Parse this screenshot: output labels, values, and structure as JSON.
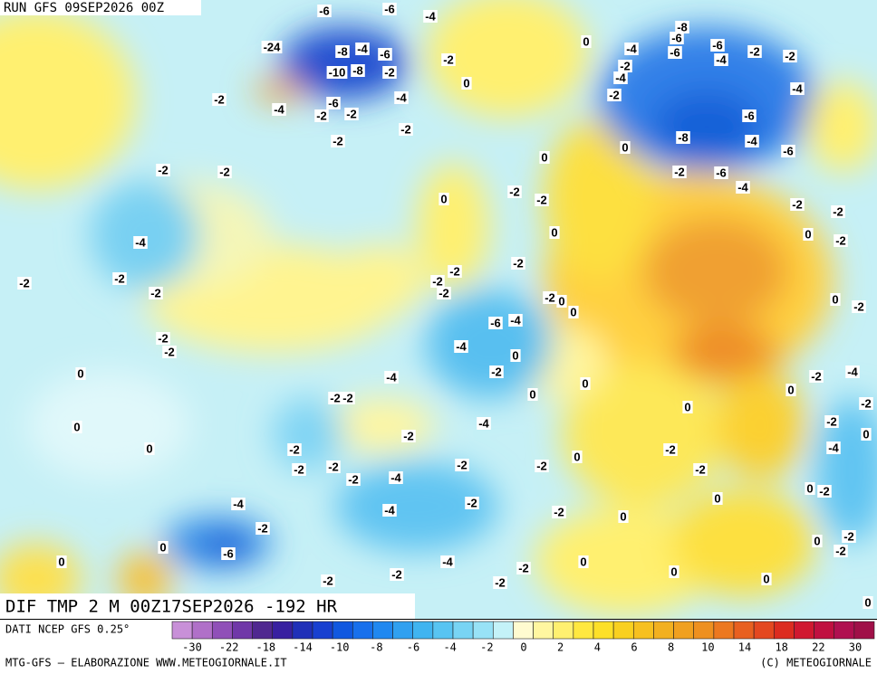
{
  "header": {
    "run": "RUN GFS 09SEP2026 00Z"
  },
  "map": {
    "title": "DIF TMP 2 M 00Z17SEP2026 -192 HR",
    "contour_labels": [
      -6,
      -6,
      -4,
      -24,
      -8,
      -4,
      -6,
      -10,
      -8,
      -2,
      -2,
      0,
      -2,
      -4,
      -6,
      -2,
      -2,
      -4,
      -2,
      -2,
      -2,
      -2,
      -4,
      -2,
      -2,
      -2,
      -2,
      -2,
      0,
      0,
      0,
      0,
      -4,
      -8,
      -6,
      -2,
      -4,
      -6,
      -6,
      -4,
      -2,
      -2,
      -2,
      -4,
      -6,
      -8,
      -4,
      -6,
      0,
      -2,
      -6,
      -4,
      0,
      -2,
      0,
      -2,
      0,
      -2,
      -2,
      0,
      -2,
      -2,
      -2,
      -2,
      -2,
      -2,
      0,
      0,
      -6,
      -4,
      -4,
      0,
      -2,
      -4,
      0,
      0,
      -2,
      -2,
      0,
      -2,
      -2,
      -4,
      0,
      -2,
      -4,
      -2,
      0,
      -2,
      0,
      -4,
      -2,
      -2,
      -2,
      -2,
      -2,
      -2,
      -4,
      -2,
      0,
      -2,
      -4,
      -4,
      -2,
      -2,
      0,
      0,
      0,
      -2,
      -2,
      0,
      -6,
      0,
      -4,
      -2,
      -2,
      -2,
      -2,
      0,
      0,
      0,
      0,
      -2,
      -2,
      0
    ]
  },
  "legend": {
    "source": "DATI NCEP GFS 0.25°",
    "colors": [
      "#c890d8",
      "#b070c8",
      "#9050b8",
      "#7038a8",
      "#502890",
      "#3820a0",
      "#2030b8",
      "#1840d0",
      "#1058e0",
      "#1870ec",
      "#2088f0",
      "#30a0f0",
      "#40b4f0",
      "#58c4f2",
      "#78d4f4",
      "#98e2f6",
      "#c4f2f8",
      "#fffbd0",
      "#fff6a0",
      "#fff070",
      "#ffe840",
      "#fde028",
      "#f9d020",
      "#f6c020",
      "#f2b020",
      "#f0a020",
      "#ee9020",
      "#ec7820",
      "#e86020",
      "#e44820",
      "#dc2c20",
      "#d01830",
      "#c01040",
      "#b01050",
      "#a01048"
    ],
    "labels": [
      -30,
      -22,
      -18,
      -14,
      -10,
      -8,
      -6,
      -4,
      -2,
      0,
      2,
      4,
      6,
      8,
      10,
      14,
      18,
      22,
      30
    ]
  },
  "footer": {
    "left": "MTG-GFS — ELABORAZIONE WWW.METEOGIORNALE.IT",
    "right": "(C) METEOGIORNALE"
  }
}
